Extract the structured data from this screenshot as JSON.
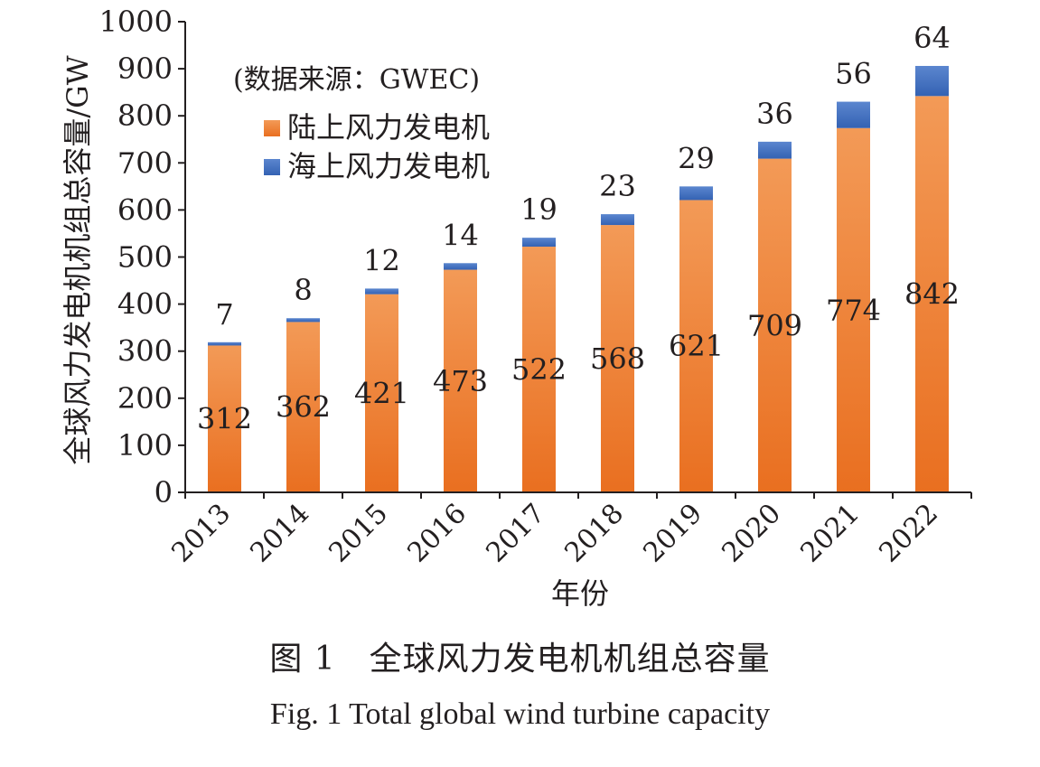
{
  "chart_data": {
    "type": "bar",
    "stacked": true,
    "categories": [
      "2013",
      "2014",
      "2015",
      "2016",
      "2017",
      "2018",
      "2019",
      "2020",
      "2021",
      "2022"
    ],
    "series": [
      {
        "name": "陆上风力发电机",
        "values": [
          312,
          362,
          421,
          473,
          522,
          568,
          621,
          709,
          774,
          842
        ],
        "color": "#ef7d33"
      },
      {
        "name": "海上风力发电机",
        "values": [
          7,
          8,
          12,
          14,
          19,
          23,
          29,
          36,
          56,
          64
        ],
        "color": "#3d6bbf"
      }
    ],
    "ylabel": "全球风力发电机机组总容量/GW",
    "xlabel": "年份",
    "ylim": [
      0,
      1000
    ],
    "yticks": [
      0,
      100,
      200,
      300,
      400,
      500,
      600,
      700,
      800,
      900,
      1000
    ],
    "source_note": "(数据来源：GWEC)",
    "legend_position": "top-left",
    "grid": false
  },
  "caption": {
    "cn": "图 1　全球风力发电机机组总容量",
    "en": "Fig. 1   Total global wind turbine capacity"
  }
}
